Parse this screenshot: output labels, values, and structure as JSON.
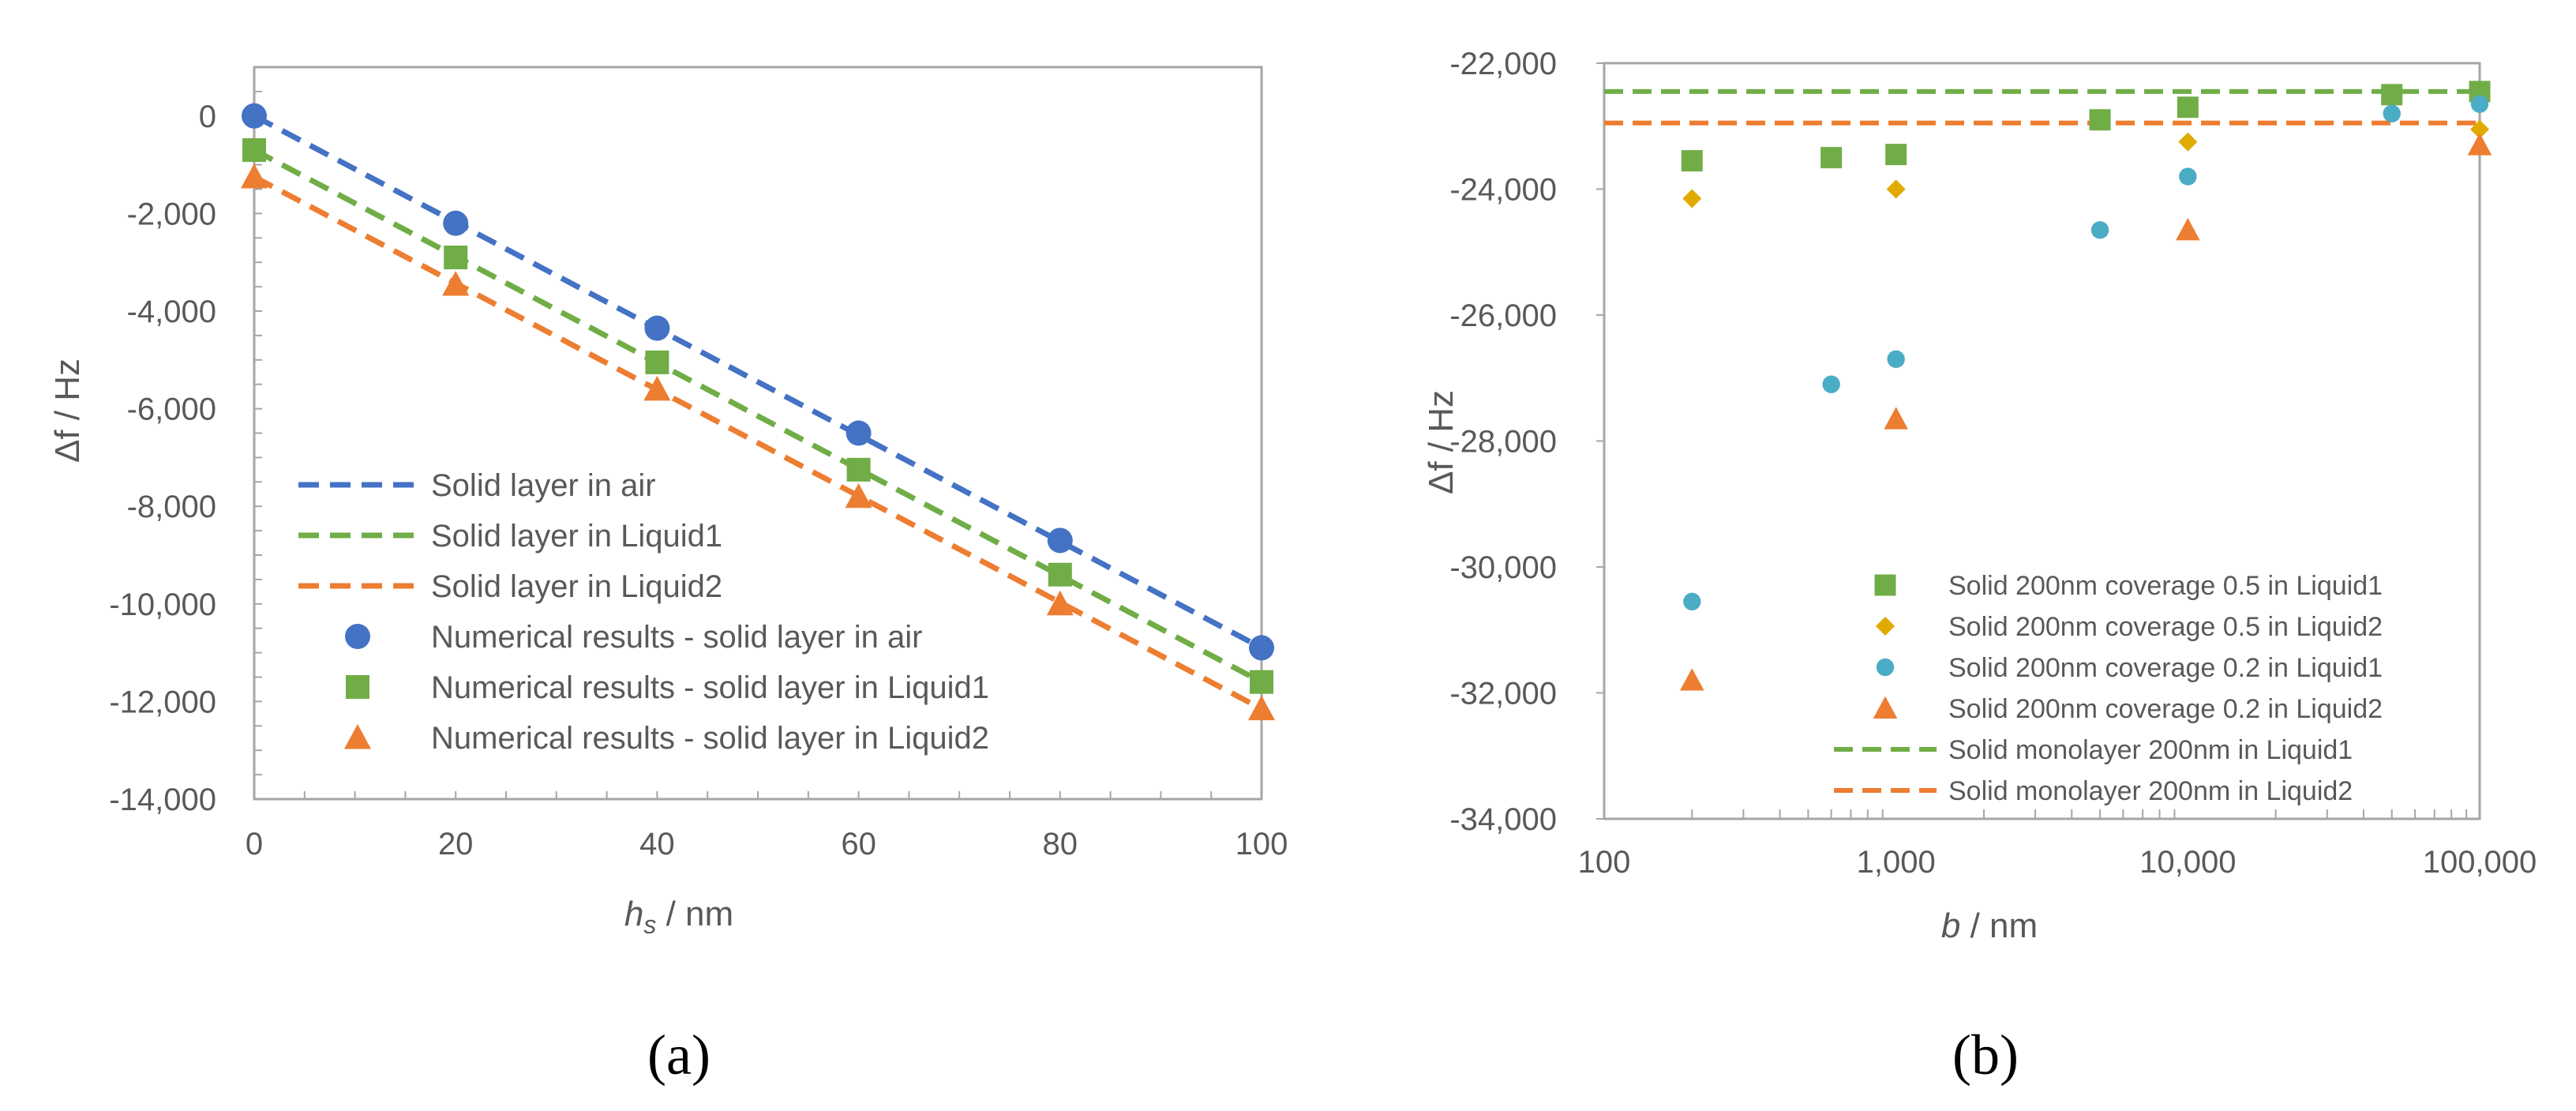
{
  "colors": {
    "blue": "#4472C4",
    "green": "#70AD47",
    "orange": "#ED7D31",
    "gold": "#E0AA00",
    "cyan": "#4BACC6",
    "axis": "#A6A6A6",
    "text": "#595959"
  },
  "chart_data": [
    {
      "type": "scatter",
      "caption": "(a)",
      "xlabel_var": "h",
      "xlabel_sub": "s",
      "xlabel_unit": " / nm",
      "ylabel": "Δf / Hz",
      "xlim": [
        0,
        100
      ],
      "ylim": [
        -14000,
        1000
      ],
      "xticks": [
        0,
        20,
        40,
        60,
        80,
        100
      ],
      "xtick_labels": [
        "0",
        "20",
        "40",
        "60",
        "80",
        "100"
      ],
      "yticks": [
        0,
        -2000,
        -4000,
        -6000,
        -8000,
        -10000,
        -12000,
        -14000
      ],
      "ytick_labels": [
        "0",
        "-2,000",
        "-4,000",
        "-6,000",
        "-8,000",
        "-10,000",
        "-12,000",
        "-14,000"
      ],
      "lines": [
        {
          "name": "Solid layer in air",
          "color": "blue",
          "x": [
            0,
            100
          ],
          "y": [
            0,
            -10900
          ]
        },
        {
          "name": "Solid layer in Liquid1",
          "color": "green",
          "x": [
            0,
            100
          ],
          "y": [
            -700,
            -11600
          ]
        },
        {
          "name": "Solid layer in Liquid2",
          "color": "orange",
          "x": [
            0,
            100
          ],
          "y": [
            -1250,
            -12150
          ]
        }
      ],
      "series": [
        {
          "name": "Numerical results - solid layer in air",
          "color": "blue",
          "marker": "circle",
          "x": [
            0,
            20,
            40,
            60,
            80,
            100
          ],
          "y": [
            0,
            -2200,
            -4350,
            -6500,
            -8700,
            -10900
          ]
        },
        {
          "name": "Numerical results - solid layer in Liquid1",
          "color": "green",
          "marker": "square",
          "x": [
            0,
            20,
            40,
            60,
            80,
            100
          ],
          "y": [
            -700,
            -2900,
            -5050,
            -7250,
            -9400,
            -11600
          ]
        },
        {
          "name": "Numerical results - solid layer in Liquid2",
          "color": "orange",
          "marker": "triangle",
          "x": [
            0,
            20,
            40,
            60,
            80,
            100
          ],
          "y": [
            -1250,
            -3450,
            -5600,
            -7800,
            -10000,
            -12150
          ]
        }
      ]
    },
    {
      "type": "scatter",
      "caption": "(b)",
      "xscale": "log",
      "xlabel_var": "b",
      "xlabel_unit": " / nm",
      "ylabel": "Δf / Hz",
      "xlim": [
        100,
        100000
      ],
      "ylim": [
        -34000,
        -22000
      ],
      "xticks": [
        100,
        1000,
        10000,
        100000
      ],
      "xtick_labels": [
        "100",
        "1,000",
        "10,000",
        "100,000"
      ],
      "yticks": [
        -22000,
        -24000,
        -26000,
        -28000,
        -30000,
        -32000,
        -34000
      ],
      "ytick_labels": [
        "-22,000",
        "-24,000",
        "-26,000",
        "-28,000",
        "-30,000",
        "-32,000",
        "-34,000"
      ],
      "series": [
        {
          "name": "Solid 200nm coverage 0.5 in Liquid1",
          "color": "green",
          "marker": "square",
          "x": [
            200,
            600,
            1000,
            5000,
            10000,
            50000,
            100000
          ],
          "y": [
            -23550,
            -23500,
            -23450,
            -22900,
            -22700,
            -22500,
            -22450
          ]
        },
        {
          "name": "Solid 200nm coverage 0.5 in Liquid2",
          "color": "gold",
          "marker": "diamond",
          "x": [
            200,
            1000,
            10000,
            100000
          ],
          "y": [
            -24150,
            -24000,
            -23250,
            -23050
          ]
        },
        {
          "name": "Solid 200nm coverage 0.2 in Liquid1",
          "color": "cyan",
          "marker": "circle",
          "x": [
            200,
            600,
            1000,
            5000,
            10000,
            50000,
            100000
          ],
          "y": [
            -30550,
            -27100,
            -26700,
            -24650,
            -23800,
            -22800,
            -22650
          ]
        },
        {
          "name": "Solid 200nm coverage 0.2 in Liquid2",
          "color": "orange",
          "marker": "triangle",
          "x": [
            200,
            1000,
            10000,
            100000
          ],
          "y": [
            -31800,
            -27650,
            -24650,
            -23300
          ]
        }
      ],
      "hlines": [
        {
          "name": "Solid monolayer 200nm in Liquid1",
          "color": "green",
          "y": -22450
        },
        {
          "name": "Solid monolayer 200nm in Liquid2",
          "color": "orange",
          "y": -22950
        }
      ]
    }
  ]
}
